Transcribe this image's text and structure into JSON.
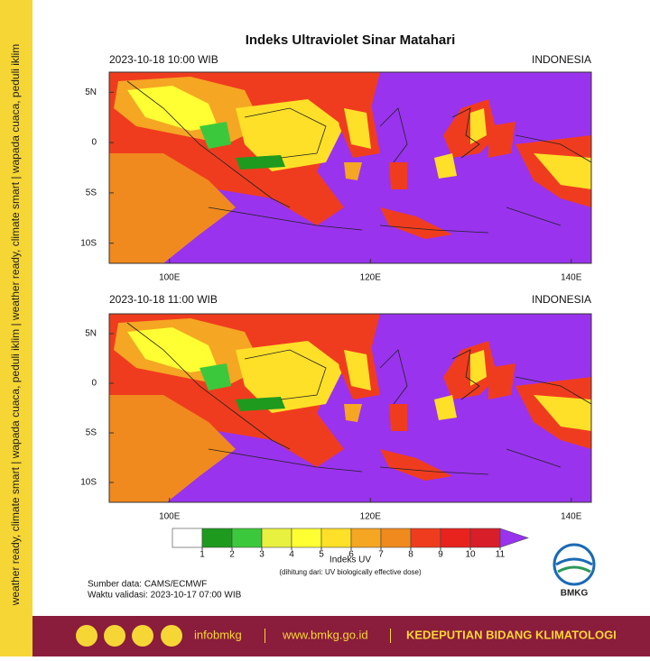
{
  "sidebar": "weather ready, climate smart | wapada cuaca, peduli iklim | weather ready, climate smart | wapada cuaca, peduli iklim",
  "title": "Indeks Ultraviolet Sinar Matahari",
  "panels": [
    {
      "time": "2023-10-18  10:00 WIB",
      "region": "INDONESIA"
    },
    {
      "time": "2023-10-18  11:00 WIB",
      "region": "INDONESIA"
    }
  ],
  "xlim": [
    94,
    142
  ],
  "ylim": [
    -12,
    7
  ],
  "xticks": [
    {
      "value": 100,
      "label": "100E"
    },
    {
      "value": 120,
      "label": "120E"
    },
    {
      "value": 140,
      "label": "140E"
    }
  ],
  "yticks": [
    {
      "value": 5,
      "label": "5N"
    },
    0,
    {
      "value": -5,
      "label": "5S"
    },
    {
      "value": -10,
      "label": "10S"
    }
  ],
  "legend": {
    "title": "Indeks UV",
    "note": "(dihitung dari: UV biologically effective dose)",
    "levels": [
      1,
      2,
      3,
      4,
      5,
      6,
      7,
      8,
      9,
      10,
      11
    ],
    "colors": [
      "#ffffff",
      "#1e9a1e",
      "#3cc83c",
      "#e8f040",
      "#ffff33",
      "#ffe028",
      "#f5a623",
      "#f08a1e",
      "#f03c1e",
      "#e8231e",
      "#d81e28",
      "#9933ee"
    ]
  },
  "source": "Sumber data: CAMS/ECMWF",
  "validity": "Waktu validasi: 2023-10-17 07:00 WIB",
  "logo": "BMKG",
  "footer": {
    "social": "infobmkg",
    "website": "www.bmkg.go.id",
    "unit": "KEDEPUTIAN BIDANG KLIMATOLOGI"
  }
}
